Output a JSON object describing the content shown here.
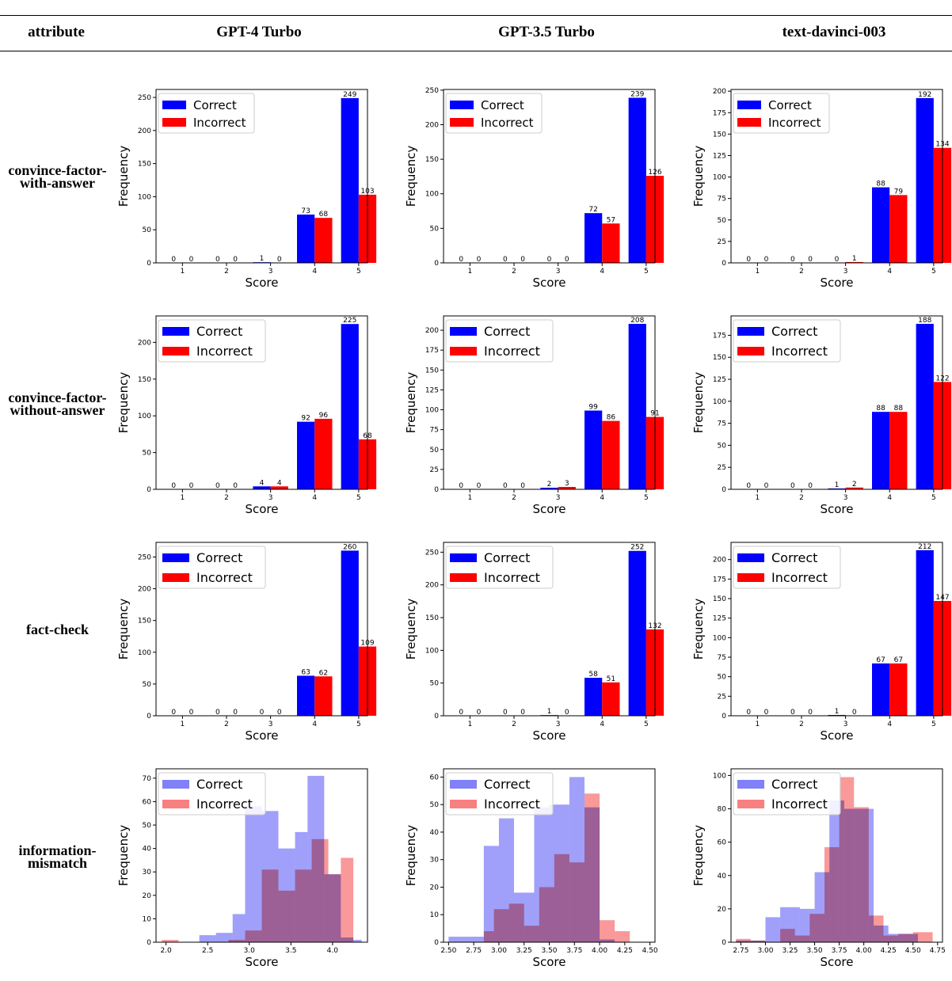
{
  "header": {
    "attribute": "attribute",
    "models": [
      "GPT-4 Turbo",
      "GPT-3.5 Turbo",
      "text-davinci-003"
    ]
  },
  "rows": [
    {
      "line1": "convince-factor-",
      "line2": "with-answer"
    },
    {
      "line1": "convince-factor-",
      "line2": "without-answer"
    },
    {
      "line1": "fact-check",
      "line2": ""
    },
    {
      "line1": "information-",
      "line2": "mismatch"
    }
  ],
  "legend": {
    "correct": "Correct",
    "incorrect": "Incorrect"
  },
  "axis": {
    "xlabel": "Score",
    "ylabel": "Frequency"
  },
  "colors": {
    "correct": "#0000ff",
    "incorrect": "#ff0000",
    "correct_hist": "#8080f8",
    "incorrect_hist": "#f88080"
  },
  "chart_data": [
    {
      "type": "bar",
      "row": "convince-factor-with-answer",
      "model": "GPT-4 Turbo",
      "categories": [
        "1",
        "2",
        "3",
        "4",
        "5"
      ],
      "series": [
        {
          "name": "Correct",
          "values": [
            0,
            0,
            1,
            73,
            249
          ]
        },
        {
          "name": "Incorrect",
          "values": [
            0,
            0,
            0,
            68,
            103
          ]
        }
      ],
      "xlabel": "Score",
      "ylabel": "Frequency",
      "ylim": [
        0,
        262
      ],
      "yticks": [
        0,
        50,
        100,
        150,
        200,
        250
      ]
    },
    {
      "type": "bar",
      "row": "convince-factor-with-answer",
      "model": "GPT-3.5 Turbo",
      "categories": [
        "1",
        "2",
        "3",
        "4",
        "5"
      ],
      "series": [
        {
          "name": "Correct",
          "values": [
            0,
            0,
            0,
            72,
            239
          ]
        },
        {
          "name": "Incorrect",
          "values": [
            0,
            0,
            0,
            57,
            126
          ]
        }
      ],
      "xlabel": "Score",
      "ylabel": "Frequency",
      "ylim": [
        0,
        251
      ],
      "yticks": [
        0,
        50,
        100,
        150,
        200,
        250
      ]
    },
    {
      "type": "bar",
      "row": "convince-factor-with-answer",
      "model": "text-davinci-003",
      "categories": [
        "1",
        "2",
        "3",
        "4",
        "5"
      ],
      "series": [
        {
          "name": "Correct",
          "values": [
            0,
            0,
            0,
            88,
            192
          ]
        },
        {
          "name": "Incorrect",
          "values": [
            0,
            0,
            1,
            79,
            134
          ]
        }
      ],
      "xlabel": "Score",
      "ylabel": "Frequency",
      "ylim": [
        0,
        202
      ],
      "yticks": [
        0,
        25,
        50,
        75,
        100,
        125,
        150,
        175,
        200
      ]
    },
    {
      "type": "bar",
      "row": "convince-factor-without-answer",
      "model": "GPT-4 Turbo",
      "categories": [
        "1",
        "2",
        "3",
        "4",
        "5"
      ],
      "series": [
        {
          "name": "Correct",
          "values": [
            0,
            0,
            4,
            92,
            225
          ]
        },
        {
          "name": "Incorrect",
          "values": [
            0,
            0,
            4,
            96,
            68
          ]
        }
      ],
      "xlabel": "Score",
      "ylabel": "Frequency",
      "ylim": [
        0,
        236
      ],
      "yticks": [
        0,
        50,
        100,
        150,
        200
      ]
    },
    {
      "type": "bar",
      "row": "convince-factor-without-answer",
      "model": "GPT-3.5 Turbo",
      "categories": [
        "1",
        "2",
        "3",
        "4",
        "5"
      ],
      "series": [
        {
          "name": "Correct",
          "values": [
            0,
            0,
            2,
            99,
            208
          ]
        },
        {
          "name": "Incorrect",
          "values": [
            0,
            0,
            3,
            86,
            91
          ]
        }
      ],
      "xlabel": "Score",
      "ylabel": "Frequency",
      "ylim": [
        0,
        218
      ],
      "yticks": [
        0,
        25,
        50,
        75,
        100,
        125,
        150,
        175,
        200
      ]
    },
    {
      "type": "bar",
      "row": "convince-factor-without-answer",
      "model": "text-davinci-003",
      "categories": [
        "1",
        "2",
        "3",
        "4",
        "5"
      ],
      "series": [
        {
          "name": "Correct",
          "values": [
            0,
            0,
            1,
            88,
            188
          ]
        },
        {
          "name": "Incorrect",
          "values": [
            0,
            0,
            2,
            88,
            122
          ]
        }
      ],
      "xlabel": "Score",
      "ylabel": "Frequency",
      "ylim": [
        0,
        197
      ],
      "yticks": [
        0,
        25,
        50,
        75,
        100,
        125,
        150,
        175
      ]
    },
    {
      "type": "bar",
      "row": "fact-check",
      "model": "GPT-4 Turbo",
      "categories": [
        "1",
        "2",
        "3",
        "4",
        "5"
      ],
      "series": [
        {
          "name": "Correct",
          "values": [
            0,
            0,
            0,
            63,
            260
          ]
        },
        {
          "name": "Incorrect",
          "values": [
            0,
            0,
            0,
            62,
            109
          ]
        }
      ],
      "xlabel": "Score",
      "ylabel": "Frequency",
      "ylim": [
        0,
        273
      ],
      "yticks": [
        0,
        50,
        100,
        150,
        200,
        250
      ]
    },
    {
      "type": "bar",
      "row": "fact-check",
      "model": "GPT-3.5 Turbo",
      "categories": [
        "1",
        "2",
        "3",
        "4",
        "5"
      ],
      "series": [
        {
          "name": "Correct",
          "values": [
            0,
            0,
            1,
            58,
            252
          ]
        },
        {
          "name": "Incorrect",
          "values": [
            0,
            0,
            0,
            51,
            132
          ]
        }
      ],
      "xlabel": "Score",
      "ylabel": "Frequency",
      "ylim": [
        0,
        265
      ],
      "yticks": [
        0,
        50,
        100,
        150,
        200,
        250
      ]
    },
    {
      "type": "bar",
      "row": "fact-check",
      "model": "text-davinci-003",
      "categories": [
        "1",
        "2",
        "3",
        "4",
        "5"
      ],
      "series": [
        {
          "name": "Correct",
          "values": [
            0,
            0,
            1,
            67,
            212
          ]
        },
        {
          "name": "Incorrect",
          "values": [
            0,
            0,
            0,
            67,
            147
          ]
        }
      ],
      "xlabel": "Score",
      "ylabel": "Frequency",
      "ylim": [
        0,
        222
      ],
      "yticks": [
        0,
        25,
        50,
        75,
        100,
        125,
        150,
        175,
        200
      ]
    },
    {
      "type": "histogram",
      "row": "information-mismatch",
      "model": "GPT-4 Turbo",
      "series": [
        {
          "name": "Correct",
          "bins": [
            [
              2.0,
              2.2,
              0
            ],
            [
              2.2,
              2.4,
              0
            ],
            [
              2.4,
              2.6,
              3
            ],
            [
              2.6,
              2.8,
              4
            ],
            [
              2.8,
              2.95,
              12
            ],
            [
              2.95,
              3.15,
              58
            ],
            [
              3.15,
              3.35,
              56
            ],
            [
              3.35,
              3.55,
              40
            ],
            [
              3.55,
              3.7,
              47
            ],
            [
              3.7,
              3.9,
              71
            ],
            [
              3.9,
              4.1,
              29
            ],
            [
              4.1,
              4.25,
              2
            ],
            [
              4.25,
              4.35,
              1
            ]
          ]
        },
        {
          "name": "Incorrect",
          "bins": [
            [
              1.95,
              2.15,
              1
            ],
            [
              2.75,
              2.95,
              1
            ],
            [
              2.95,
              3.15,
              5
            ],
            [
              3.15,
              3.35,
              31
            ],
            [
              3.35,
              3.55,
              22
            ],
            [
              3.55,
              3.75,
              31
            ],
            [
              3.75,
              3.95,
              44
            ],
            [
              3.95,
              4.1,
              29
            ],
            [
              4.1,
              4.25,
              36
            ]
          ]
        }
      ],
      "xlabel": "Score",
      "ylabel": "Frequency",
      "xlim": [
        1.88,
        4.42
      ],
      "xticks": [
        2.0,
        2.5,
        3.0,
        3.5,
        4.0
      ],
      "ylim": [
        0,
        74
      ],
      "yticks": [
        0,
        10,
        20,
        30,
        40,
        50,
        60,
        70
      ]
    },
    {
      "type": "histogram",
      "row": "information-mismatch",
      "model": "GPT-3.5 Turbo",
      "series": [
        {
          "name": "Correct",
          "bins": [
            [
              2.5,
              2.7,
              2
            ],
            [
              2.7,
              2.85,
              2
            ],
            [
              2.85,
              3.0,
              35
            ],
            [
              3.0,
              3.15,
              45
            ],
            [
              3.15,
              3.35,
              18
            ],
            [
              3.35,
              3.5,
              49
            ],
            [
              3.5,
              3.7,
              50
            ],
            [
              3.7,
              3.85,
              60
            ],
            [
              3.85,
              4.0,
              49
            ],
            [
              4.0,
              4.15,
              1
            ]
          ]
        },
        {
          "name": "Incorrect",
          "bins": [
            [
              2.85,
              2.95,
              4
            ],
            [
              2.95,
              3.1,
              12
            ],
            [
              3.1,
              3.25,
              14
            ],
            [
              3.25,
              3.4,
              6
            ],
            [
              3.4,
              3.55,
              20
            ],
            [
              3.55,
              3.7,
              32
            ],
            [
              3.7,
              3.85,
              29
            ],
            [
              3.85,
              4.0,
              54
            ],
            [
              4.0,
              4.15,
              8
            ],
            [
              4.15,
              4.3,
              4
            ]
          ]
        }
      ],
      "xlabel": "Score",
      "ylabel": "Frequency",
      "xlim": [
        2.45,
        4.55
      ],
      "xticks": [
        2.5,
        2.75,
        3.0,
        3.25,
        3.5,
        3.75,
        4.0,
        4.25,
        4.5
      ],
      "ylim": [
        0,
        63
      ],
      "yticks": [
        0,
        10,
        20,
        30,
        40,
        50,
        60
      ]
    },
    {
      "type": "histogram",
      "row": "information-mismatch",
      "model": "text-davinci-003",
      "series": [
        {
          "name": "Correct",
          "bins": [
            [
              2.7,
              2.85,
              1
            ],
            [
              2.85,
              3.0,
              1
            ],
            [
              3.0,
              3.15,
              15
            ],
            [
              3.15,
              3.35,
              21
            ],
            [
              3.35,
              3.5,
              20
            ],
            [
              3.5,
              3.65,
              42
            ],
            [
              3.65,
              3.8,
              85
            ],
            [
              3.8,
              3.95,
              80
            ],
            [
              3.95,
              4.1,
              80
            ],
            [
              4.1,
              4.25,
              10
            ],
            [
              4.25,
              4.4,
              5
            ],
            [
              4.4,
              4.55,
              5
            ]
          ]
        },
        {
          "name": "Incorrect",
          "bins": [
            [
              2.7,
              2.85,
              2
            ],
            [
              2.85,
              3.0,
              1
            ],
            [
              3.0,
              3.15,
              0
            ],
            [
              3.15,
              3.3,
              8
            ],
            [
              3.3,
              3.45,
              4
            ],
            [
              3.45,
              3.6,
              17
            ],
            [
              3.6,
              3.75,
              57
            ],
            [
              3.75,
              3.9,
              99
            ],
            [
              3.9,
              4.05,
              81
            ],
            [
              4.05,
              4.2,
              16
            ],
            [
              4.2,
              4.35,
              4
            ],
            [
              4.35,
              4.5,
              5
            ],
            [
              4.5,
              4.7,
              6
            ]
          ]
        }
      ],
      "xlabel": "Score",
      "ylabel": "Frequency",
      "xlim": [
        2.65,
        4.8
      ],
      "xticks": [
        2.75,
        3.0,
        3.25,
        3.5,
        3.75,
        4.0,
        4.25,
        4.5,
        4.75
      ],
      "ylim": [
        0,
        104
      ],
      "yticks": [
        0,
        20,
        40,
        60,
        80,
        100
      ]
    }
  ]
}
